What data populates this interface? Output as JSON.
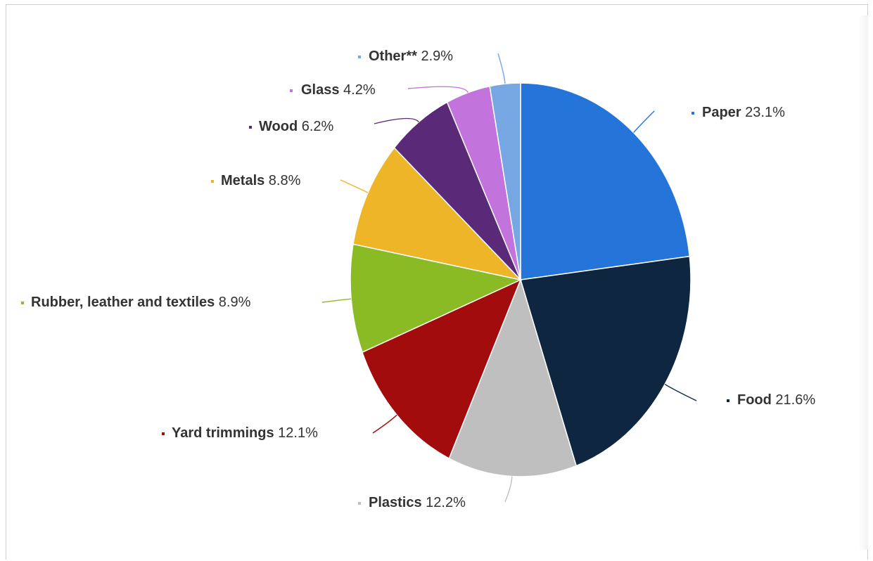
{
  "chart_data": {
    "type": "pie",
    "categories": [
      "Paper",
      "Food",
      "Plastics",
      "Yard trimmings",
      "Rubber, leather and textiles",
      "Metals",
      "Wood",
      "Glass",
      "Other**"
    ],
    "values": [
      23.1,
      21.6,
      12.2,
      12.1,
      8.9,
      8.8,
      6.2,
      4.2,
      2.9
    ],
    "labels": [
      "23.1%",
      "21.6%",
      "12.2%",
      "12.1%",
      "8.9%",
      "8.8%",
      "6.2%",
      "4.2%",
      "2.9%"
    ],
    "colors": [
      "#2574d9",
      "#0f2640",
      "#bfbfbf",
      "#a30c0c",
      "#8abb24",
      "#eeb528",
      "#5a2977",
      "#c374dc",
      "#77a7e2"
    ],
    "start_angle_deg": 0,
    "direction": "clockwise",
    "label_style": "outside-with-connectors",
    "legend": "none",
    "title": ""
  }
}
